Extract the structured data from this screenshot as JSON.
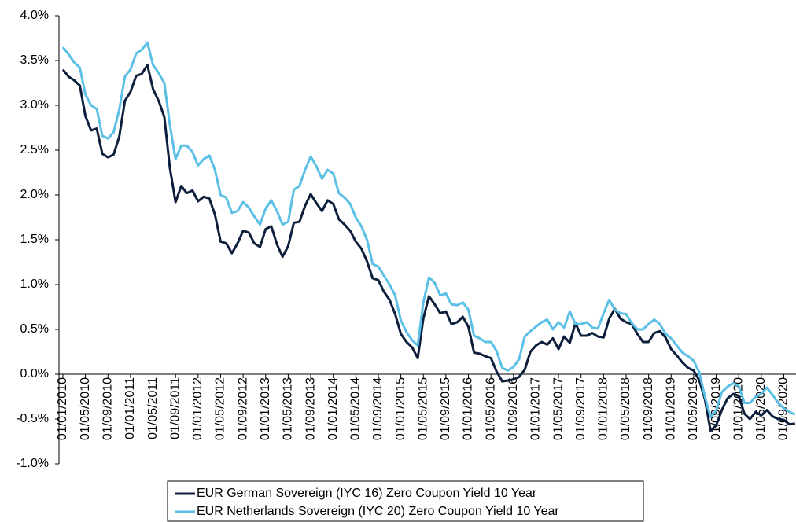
{
  "chart_data": {
    "type": "line",
    "categories": [
      "01/01/2010",
      null,
      null,
      null,
      "01/05/2010",
      null,
      null,
      null,
      "01/09/2010",
      null,
      null,
      null,
      "01/01/2011",
      null,
      null,
      null,
      "01/05/2011",
      null,
      null,
      null,
      "01/09/2011",
      null,
      null,
      null,
      "01/01/2012",
      null,
      null,
      null,
      "01/05/2012",
      null,
      null,
      null,
      "01/09/2012",
      null,
      null,
      null,
      "01/01/2013",
      null,
      null,
      null,
      "01/05/2013",
      null,
      null,
      null,
      "01/09/2013",
      null,
      null,
      null,
      "01/01/2014",
      null,
      null,
      null,
      "01/05/2014",
      null,
      null,
      null,
      "01/09/2014",
      null,
      null,
      null,
      "01/01/2015",
      null,
      null,
      null,
      "01/05/2015",
      null,
      null,
      null,
      "01/09/2015",
      null,
      null,
      null,
      "01/01/2016",
      null,
      null,
      null,
      "01/05/2016",
      null,
      null,
      null,
      "01/09/2016",
      null,
      null,
      null,
      "01/01/2017",
      null,
      null,
      null,
      "01/05/2017",
      null,
      null,
      null,
      "01/09/2017",
      null,
      null,
      null,
      "01/01/2018",
      null,
      null,
      null,
      "01/05/2018",
      null,
      null,
      null,
      "01/09/2018",
      null,
      null,
      null,
      "01/01/2019",
      null,
      null,
      null,
      "01/05/2019",
      null,
      null,
      null,
      "01/09/2019",
      null,
      null,
      null,
      "01/01/2020",
      null,
      null,
      null,
      "01/05/2020",
      null,
      null,
      null,
      "01/09/2020",
      null,
      null
    ],
    "series": [
      {
        "name": "EUR German Sovereign (IYC 16) Zero Coupon Yield 10 Year",
        "color": "#0d1f3c",
        "values": [
          3.4,
          3.32,
          3.28,
          3.22,
          2.88,
          2.72,
          2.74,
          2.46,
          2.42,
          2.45,
          2.65,
          3.05,
          3.15,
          3.33,
          3.35,
          3.45,
          3.18,
          3.05,
          2.87,
          2.3,
          1.92,
          2.1,
          2.02,
          2.05,
          1.93,
          1.98,
          1.96,
          1.78,
          1.48,
          1.46,
          1.35,
          1.46,
          1.6,
          1.58,
          1.46,
          1.42,
          1.62,
          1.65,
          1.45,
          1.31,
          1.43,
          1.69,
          1.7,
          1.88,
          2.01,
          1.91,
          1.82,
          1.94,
          1.9,
          1.73,
          1.67,
          1.6,
          1.48,
          1.4,
          1.26,
          1.07,
          1.05,
          0.92,
          0.83,
          0.67,
          0.45,
          0.36,
          0.3,
          0.18,
          0.62,
          0.87,
          0.78,
          0.68,
          0.7,
          0.56,
          0.58,
          0.64,
          0.53,
          0.24,
          0.23,
          0.2,
          0.18,
          0.03,
          -0.08,
          -0.07,
          -0.06,
          -0.03,
          0.05,
          0.25,
          0.32,
          0.36,
          0.33,
          0.4,
          0.28,
          0.42,
          0.35,
          0.57,
          0.43,
          0.43,
          0.46,
          0.42,
          0.41,
          0.62,
          0.73,
          0.62,
          0.58,
          0.56,
          0.45,
          0.36,
          0.36,
          0.46,
          0.48,
          0.41,
          0.28,
          0.21,
          0.13,
          0.07,
          0.04,
          -0.07,
          -0.28,
          -0.63,
          -0.57,
          -0.4,
          -0.27,
          -0.22,
          -0.24,
          -0.44,
          -0.5,
          -0.42,
          -0.46,
          -0.4,
          -0.47,
          -0.5,
          -0.51,
          -0.56,
          -0.55
        ]
      },
      {
        "name": "EUR Netherlands Sovereign (IYC 20) Zero Coupon Yield 10 Year",
        "color": "#5bbfe6",
        "values": [
          3.65,
          3.57,
          3.48,
          3.42,
          3.12,
          3.0,
          2.96,
          2.66,
          2.63,
          2.7,
          2.95,
          3.32,
          3.4,
          3.58,
          3.62,
          3.7,
          3.45,
          3.36,
          3.25,
          2.78,
          2.4,
          2.55,
          2.55,
          2.48,
          2.33,
          2.4,
          2.44,
          2.28,
          2.0,
          1.97,
          1.8,
          1.82,
          1.92,
          1.86,
          1.76,
          1.67,
          1.85,
          1.94,
          1.82,
          1.67,
          1.7,
          2.06,
          2.1,
          2.28,
          2.43,
          2.32,
          2.18,
          2.28,
          2.24,
          2.02,
          1.97,
          1.9,
          1.75,
          1.65,
          1.5,
          1.23,
          1.2,
          1.1,
          1.0,
          0.88,
          0.6,
          0.47,
          0.38,
          0.32,
          0.8,
          1.08,
          1.02,
          0.88,
          0.9,
          0.78,
          0.77,
          0.8,
          0.72,
          0.43,
          0.4,
          0.36,
          0.36,
          0.26,
          0.07,
          0.04,
          0.08,
          0.17,
          0.42,
          0.48,
          0.53,
          0.58,
          0.61,
          0.5,
          0.58,
          0.52,
          0.7,
          0.56,
          0.56,
          0.58,
          0.52,
          0.51,
          0.68,
          0.83,
          0.72,
          0.68,
          0.67,
          0.57,
          0.5,
          0.5,
          0.56,
          0.61,
          0.56,
          0.45,
          0.4,
          0.32,
          0.24,
          0.2,
          0.15,
          0.02,
          -0.25,
          -0.48,
          -0.4,
          -0.2,
          -0.14,
          -0.1,
          -0.13,
          -0.32,
          -0.32,
          -0.25,
          -0.22,
          -0.15,
          -0.23,
          -0.32,
          -0.38,
          -0.42,
          -0.45
        ]
      }
    ],
    "ylim": [
      -1,
      4
    ],
    "yticks": [
      {
        "value": -1,
        "label": "-1.0%"
      },
      {
        "value": -0.5,
        "label": "-0.5%"
      },
      {
        "value": 0,
        "label": "0.0%"
      },
      {
        "value": 0.5,
        "label": "0.5%"
      },
      {
        "value": 1,
        "label": "1.0%"
      },
      {
        "value": 1.5,
        "label": "1.5%"
      },
      {
        "value": 2,
        "label": "2.0%"
      },
      {
        "value": 2.5,
        "label": "2.5%"
      },
      {
        "value": 3,
        "label": "3.0%"
      },
      {
        "value": 3.5,
        "label": "3.5%"
      },
      {
        "value": 4,
        "label": "4.0%"
      }
    ],
    "legend": "bottom"
  }
}
